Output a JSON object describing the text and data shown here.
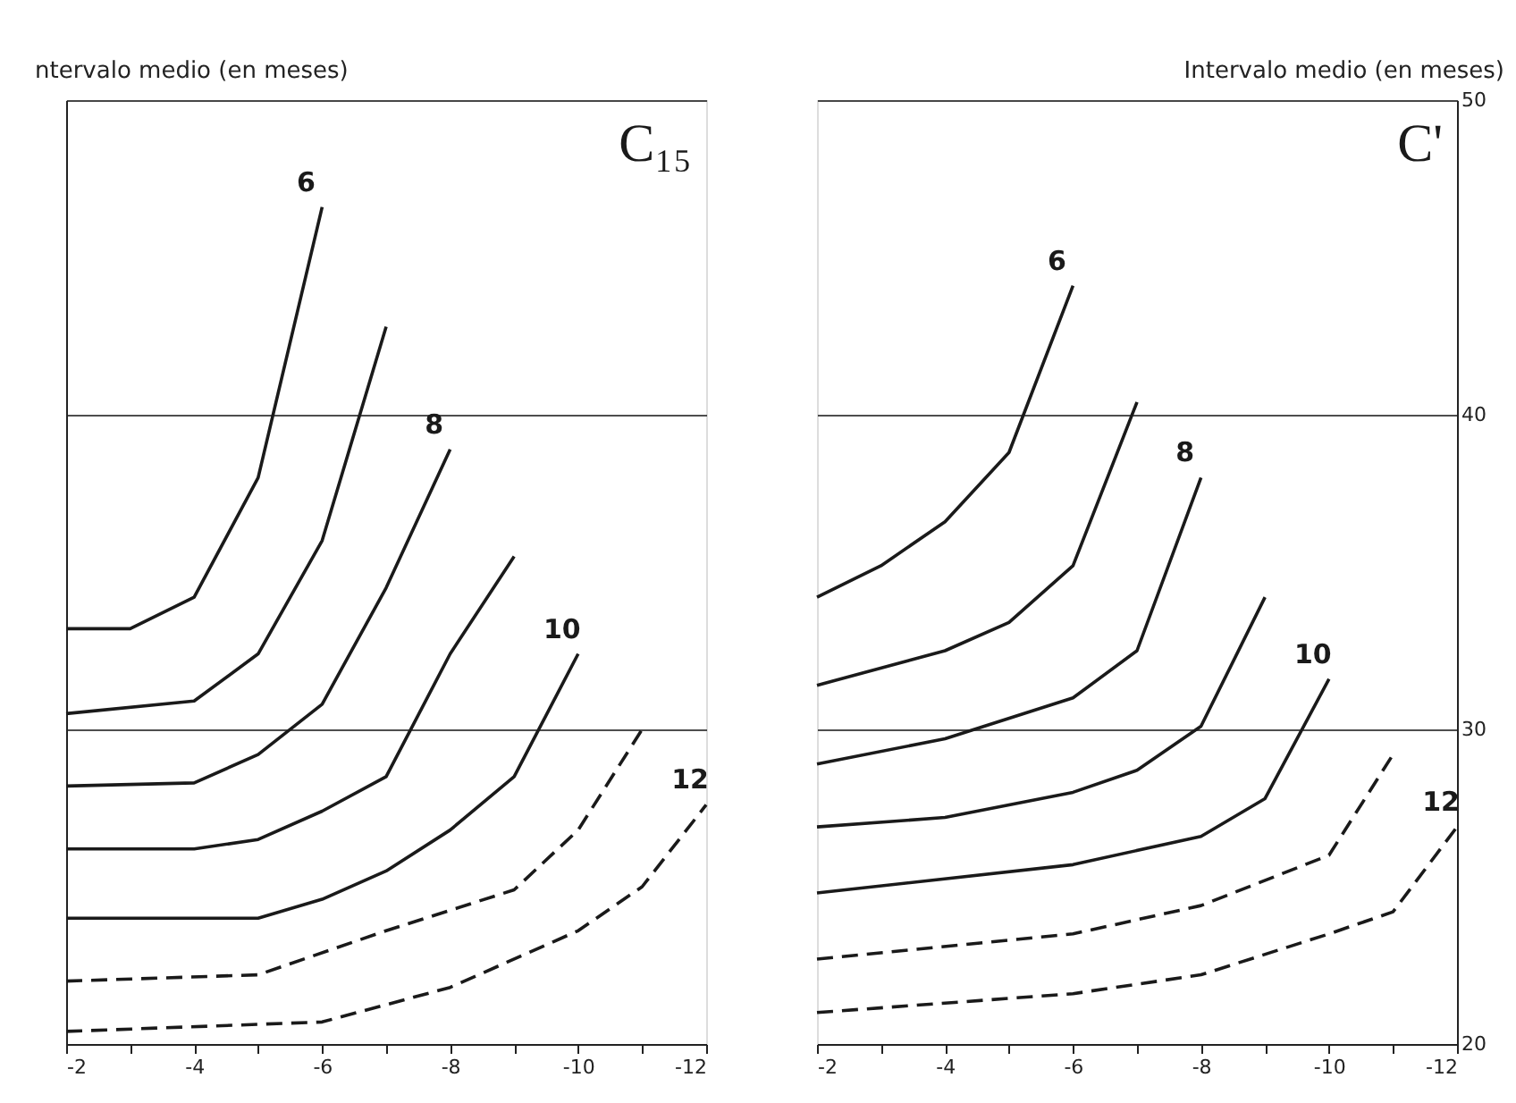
{
  "chart_data": [
    {
      "type": "line",
      "ylabel": "ntervalo medio (en meses)",
      "xlim": [
        -2,
        -12
      ],
      "ylim": [
        20,
        50
      ],
      "xticks": [
        -2,
        {
          "value": -3,
          "label": null
        },
        -4,
        {
          "value": -5,
          "label": null
        },
        -6,
        {
          "value": -7,
          "label": null
        },
        -8,
        {
          "value": -9,
          "label": null
        },
        -10,
        {
          "value": -11,
          "label": null
        },
        -12
      ],
      "yticks": [
        20,
        30,
        40,
        50
      ],
      "tick_labels": "x",
      "grid": "y",
      "annotations": [
        "C₁₅"
      ],
      "series": [
        {
          "name": "6",
          "color": "#1a1a1a",
          "line_style": "solid",
          "x": [
            -2,
            -3,
            -4,
            -5,
            -6
          ],
          "values": [
            33.2,
            33.2,
            34.2,
            38.0,
            46.6
          ]
        },
        {
          "color": "#1a1a1a",
          "line_style": "solid",
          "x": [
            -2,
            -4,
            -5,
            -6,
            -7
          ],
          "values": [
            30.5,
            30.9,
            32.4,
            36.0,
            42.8
          ]
        },
        {
          "name": "8",
          "color": "#1a1a1a",
          "line_style": "solid",
          "x": [
            -2,
            -4,
            -5,
            -6,
            -7,
            -8
          ],
          "values": [
            28.2,
            28.3,
            29.2,
            30.8,
            34.5,
            38.9
          ]
        },
        {
          "color": "#1a1a1a",
          "line_style": "solid",
          "x": [
            -2,
            -4,
            -5,
            -6,
            -7,
            -8,
            -9
          ],
          "values": [
            26.2,
            26.2,
            26.5,
            27.4,
            28.5,
            32.4,
            35.5
          ]
        },
        {
          "name": "10",
          "color": "#1a1a1a",
          "line_style": "solid",
          "x": [
            -2,
            -5,
            -6,
            -7,
            -8,
            -9,
            -10
          ],
          "values": [
            24.0,
            24.0,
            24.6,
            25.5,
            26.8,
            28.5,
            32.4
          ]
        },
        {
          "color": "#1a1a1a",
          "line_style": "dashed",
          "x": [
            -2,
            -5,
            -7,
            -9,
            -10,
            -11
          ],
          "values": [
            22.0,
            22.2,
            23.6,
            24.9,
            26.8,
            30.0
          ]
        },
        {
          "name": "12",
          "color": "#1a1a1a",
          "line_style": "dashed",
          "x": [
            -2,
            -6,
            -8,
            -10,
            -11,
            -12
          ],
          "values": [
            20.4,
            20.7,
            21.8,
            23.6,
            25.0,
            27.6
          ]
        }
      ]
    },
    {
      "type": "line",
      "y2label": "Intervalo medio (en meses)",
      "xlim": [
        -2,
        -12
      ],
      "y2lim": [
        20,
        50
      ],
      "xticks": [
        -2,
        {
          "value": -3,
          "label": null
        },
        -4,
        {
          "value": -5,
          "label": null
        },
        -6,
        {
          "value": -7,
          "label": null
        },
        -8,
        {
          "value": -9,
          "label": null
        },
        -10,
        {
          "value": -11,
          "label": null
        },
        -12
      ],
      "y2ticks": [
        20,
        30,
        40,
        50
      ],
      "grid": "y",
      "annotations": [
        "C'"
      ],
      "series": [
        {
          "name": "6",
          "color": "#1a1a1a",
          "line_style": "solid",
          "axis": "y2",
          "x": [
            -2,
            -3,
            -4,
            -5,
            -6
          ],
          "values": [
            34.2,
            35.2,
            36.6,
            38.8,
            44.1
          ]
        },
        {
          "color": "#1a1a1a",
          "line_style": "solid",
          "axis": "y2",
          "x": [
            -2,
            -4,
            -5,
            -6,
            -7
          ],
          "values": [
            31.4,
            32.5,
            33.4,
            35.2,
            40.4
          ]
        },
        {
          "name": "8",
          "color": "#1a1a1a",
          "line_style": "solid",
          "axis": "y2",
          "x": [
            -2,
            -4,
            -6,
            -7,
            -8
          ],
          "values": [
            28.9,
            29.7,
            31.0,
            32.5,
            38.0
          ]
        },
        {
          "color": "#1a1a1a",
          "line_style": "solid",
          "axis": "y2",
          "x": [
            -2,
            -4,
            -6,
            -7,
            -8,
            -9
          ],
          "values": [
            26.9,
            27.2,
            28.0,
            28.7,
            30.1,
            34.2
          ]
        },
        {
          "name": "10",
          "color": "#1a1a1a",
          "line_style": "solid",
          "axis": "y2",
          "x": [
            -2,
            -6,
            -8,
            -9,
            -10
          ],
          "values": [
            24.8,
            25.7,
            26.6,
            27.8,
            31.6
          ]
        },
        {
          "color": "#1a1a1a",
          "line_style": "dashed",
          "axis": "y2",
          "x": [
            -2,
            -6,
            -8,
            -10,
            -11
          ],
          "values": [
            22.7,
            23.5,
            24.4,
            26.0,
            29.2
          ]
        },
        {
          "name": "12",
          "color": "#1a1a1a",
          "line_style": "dashed",
          "axis": "y2",
          "x": [
            -2,
            -6,
            -8,
            -10,
            -11,
            -12
          ],
          "values": [
            21.0,
            21.6,
            22.2,
            23.5,
            24.2,
            26.9
          ]
        }
      ]
    }
  ]
}
